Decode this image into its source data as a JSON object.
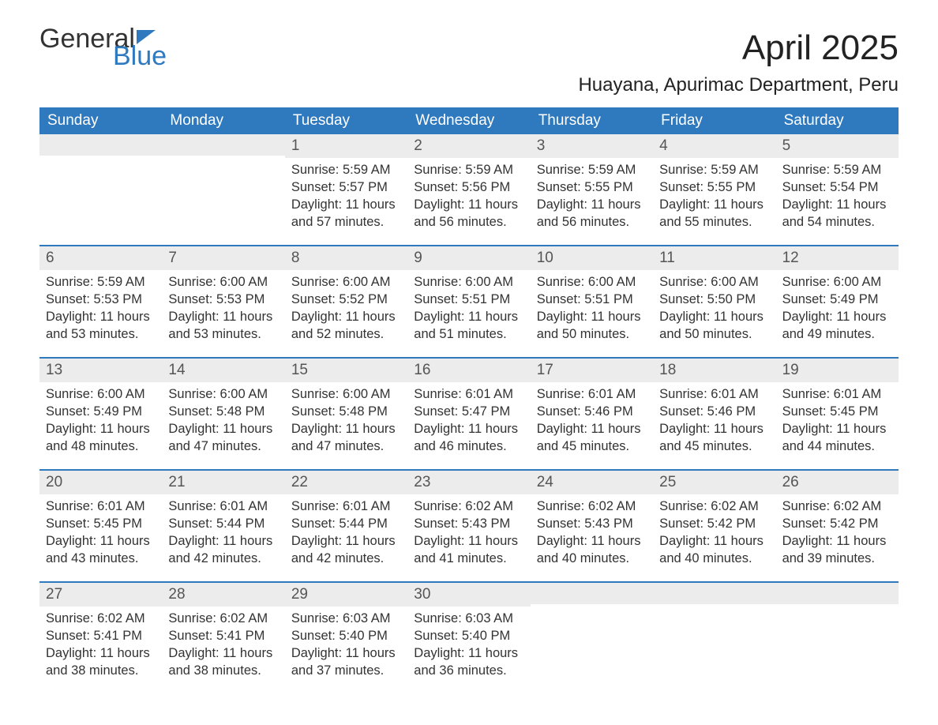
{
  "brand": {
    "word1": "General",
    "word2": "Blue",
    "accent_color": "#2f7abf"
  },
  "title": "April 2025",
  "subtitle": "Huayana, Apurimac Department, Peru",
  "colors": {
    "header_bg": "#2f7abf",
    "header_text": "#ffffff",
    "daynum_bg": "#ececec",
    "text": "#333333",
    "row_border": "#2f7abf",
    "page_bg": "#ffffff"
  },
  "fonts": {
    "title_pt": 44,
    "subtitle_pt": 24,
    "weekday_pt": 19,
    "daynum_pt": 19,
    "body_pt": 16.5
  },
  "weekdays": [
    "Sunday",
    "Monday",
    "Tuesday",
    "Wednesday",
    "Thursday",
    "Friday",
    "Saturday"
  ],
  "weeks": [
    [
      null,
      null,
      {
        "day": "1",
        "sunrise": "Sunrise: 5:59 AM",
        "sunset": "Sunset: 5:57 PM",
        "daylight": "Daylight: 11 hours and 57 minutes."
      },
      {
        "day": "2",
        "sunrise": "Sunrise: 5:59 AM",
        "sunset": "Sunset: 5:56 PM",
        "daylight": "Daylight: 11 hours and 56 minutes."
      },
      {
        "day": "3",
        "sunrise": "Sunrise: 5:59 AM",
        "sunset": "Sunset: 5:55 PM",
        "daylight": "Daylight: 11 hours and 56 minutes."
      },
      {
        "day": "4",
        "sunrise": "Sunrise: 5:59 AM",
        "sunset": "Sunset: 5:55 PM",
        "daylight": "Daylight: 11 hours and 55 minutes."
      },
      {
        "day": "5",
        "sunrise": "Sunrise: 5:59 AM",
        "sunset": "Sunset: 5:54 PM",
        "daylight": "Daylight: 11 hours and 54 minutes."
      }
    ],
    [
      {
        "day": "6",
        "sunrise": "Sunrise: 5:59 AM",
        "sunset": "Sunset: 5:53 PM",
        "daylight": "Daylight: 11 hours and 53 minutes."
      },
      {
        "day": "7",
        "sunrise": "Sunrise: 6:00 AM",
        "sunset": "Sunset: 5:53 PM",
        "daylight": "Daylight: 11 hours and 53 minutes."
      },
      {
        "day": "8",
        "sunrise": "Sunrise: 6:00 AM",
        "sunset": "Sunset: 5:52 PM",
        "daylight": "Daylight: 11 hours and 52 minutes."
      },
      {
        "day": "9",
        "sunrise": "Sunrise: 6:00 AM",
        "sunset": "Sunset: 5:51 PM",
        "daylight": "Daylight: 11 hours and 51 minutes."
      },
      {
        "day": "10",
        "sunrise": "Sunrise: 6:00 AM",
        "sunset": "Sunset: 5:51 PM",
        "daylight": "Daylight: 11 hours and 50 minutes."
      },
      {
        "day": "11",
        "sunrise": "Sunrise: 6:00 AM",
        "sunset": "Sunset: 5:50 PM",
        "daylight": "Daylight: 11 hours and 50 minutes."
      },
      {
        "day": "12",
        "sunrise": "Sunrise: 6:00 AM",
        "sunset": "Sunset: 5:49 PM",
        "daylight": "Daylight: 11 hours and 49 minutes."
      }
    ],
    [
      {
        "day": "13",
        "sunrise": "Sunrise: 6:00 AM",
        "sunset": "Sunset: 5:49 PM",
        "daylight": "Daylight: 11 hours and 48 minutes."
      },
      {
        "day": "14",
        "sunrise": "Sunrise: 6:00 AM",
        "sunset": "Sunset: 5:48 PM",
        "daylight": "Daylight: 11 hours and 47 minutes."
      },
      {
        "day": "15",
        "sunrise": "Sunrise: 6:00 AM",
        "sunset": "Sunset: 5:48 PM",
        "daylight": "Daylight: 11 hours and 47 minutes."
      },
      {
        "day": "16",
        "sunrise": "Sunrise: 6:01 AM",
        "sunset": "Sunset: 5:47 PM",
        "daylight": "Daylight: 11 hours and 46 minutes."
      },
      {
        "day": "17",
        "sunrise": "Sunrise: 6:01 AM",
        "sunset": "Sunset: 5:46 PM",
        "daylight": "Daylight: 11 hours and 45 minutes."
      },
      {
        "day": "18",
        "sunrise": "Sunrise: 6:01 AM",
        "sunset": "Sunset: 5:46 PM",
        "daylight": "Daylight: 11 hours and 45 minutes."
      },
      {
        "day": "19",
        "sunrise": "Sunrise: 6:01 AM",
        "sunset": "Sunset: 5:45 PM",
        "daylight": "Daylight: 11 hours and 44 minutes."
      }
    ],
    [
      {
        "day": "20",
        "sunrise": "Sunrise: 6:01 AM",
        "sunset": "Sunset: 5:45 PM",
        "daylight": "Daylight: 11 hours and 43 minutes."
      },
      {
        "day": "21",
        "sunrise": "Sunrise: 6:01 AM",
        "sunset": "Sunset: 5:44 PM",
        "daylight": "Daylight: 11 hours and 42 minutes."
      },
      {
        "day": "22",
        "sunrise": "Sunrise: 6:01 AM",
        "sunset": "Sunset: 5:44 PM",
        "daylight": "Daylight: 11 hours and 42 minutes."
      },
      {
        "day": "23",
        "sunrise": "Sunrise: 6:02 AM",
        "sunset": "Sunset: 5:43 PM",
        "daylight": "Daylight: 11 hours and 41 minutes."
      },
      {
        "day": "24",
        "sunrise": "Sunrise: 6:02 AM",
        "sunset": "Sunset: 5:43 PM",
        "daylight": "Daylight: 11 hours and 40 minutes."
      },
      {
        "day": "25",
        "sunrise": "Sunrise: 6:02 AM",
        "sunset": "Sunset: 5:42 PM",
        "daylight": "Daylight: 11 hours and 40 minutes."
      },
      {
        "day": "26",
        "sunrise": "Sunrise: 6:02 AM",
        "sunset": "Sunset: 5:42 PM",
        "daylight": "Daylight: 11 hours and 39 minutes."
      }
    ],
    [
      {
        "day": "27",
        "sunrise": "Sunrise: 6:02 AM",
        "sunset": "Sunset: 5:41 PM",
        "daylight": "Daylight: 11 hours and 38 minutes."
      },
      {
        "day": "28",
        "sunrise": "Sunrise: 6:02 AM",
        "sunset": "Sunset: 5:41 PM",
        "daylight": "Daylight: 11 hours and 38 minutes."
      },
      {
        "day": "29",
        "sunrise": "Sunrise: 6:03 AM",
        "sunset": "Sunset: 5:40 PM",
        "daylight": "Daylight: 11 hours and 37 minutes."
      },
      {
        "day": "30",
        "sunrise": "Sunrise: 6:03 AM",
        "sunset": "Sunset: 5:40 PM",
        "daylight": "Daylight: 11 hours and 36 minutes."
      },
      null,
      null,
      null
    ]
  ]
}
